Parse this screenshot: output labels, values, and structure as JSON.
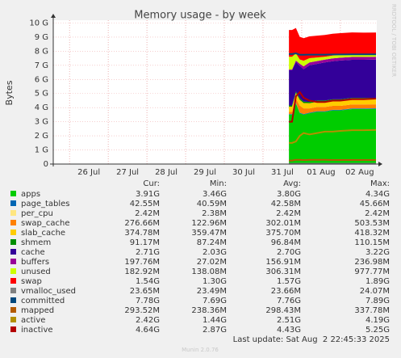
{
  "chart_data": {
    "type": "area",
    "title": "Memory usage - by week",
    "y_label": "Bytes",
    "side_text": "RRDTOOL / TOBI OETIKER",
    "footer": "Last update: Sat Aug  2 22:45:33 2025",
    "version": "Munin 2.0.76",
    "legend_columns": [
      "Cur:",
      "Min:",
      "Avg:",
      "Max:"
    ],
    "ylim": [
      0,
      10.2
    ],
    "yticks": [
      0,
      {
        "value": 1,
        "label": "1 G"
      },
      {
        "value": 2,
        "label": "2 G"
      },
      {
        "value": 3,
        "label": "3 G"
      },
      {
        "value": 4,
        "label": "4 G"
      },
      {
        "value": 5,
        "label": "5 G"
      },
      {
        "value": 6,
        "label": "6 G"
      },
      {
        "value": 7,
        "label": "7 G"
      },
      {
        "value": 8,
        "label": "8 G"
      },
      {
        "value": 9,
        "label": "9 G"
      },
      {
        "value": 10,
        "label": "10 G"
      }
    ],
    "xlim": [
      25.58,
      33.94
    ],
    "xticks": [
      {
        "value": 26.5,
        "label": "26 Jul"
      },
      {
        "value": 27.5,
        "label": "27 Jul"
      },
      {
        "value": 28.5,
        "label": "28 Jul"
      },
      {
        "value": 29.5,
        "label": "29 Jul"
      },
      {
        "value": 30.5,
        "label": "30 Jul"
      },
      {
        "value": 31.5,
        "label": "31 Jul"
      },
      {
        "value": 32.5,
        "label": "01 Aug"
      },
      {
        "value": 33.5,
        "label": "02 Aug"
      }
    ],
    "grid": true,
    "x": [
      31.67,
      31.75,
      31.85,
      31.95,
      32.05,
      32.2,
      32.4,
      32.6,
      32.8,
      33.0,
      33.3,
      33.6,
      33.92
    ],
    "series": [
      {
        "name": "apps",
        "color": "#00cc00",
        "stacked": true,
        "values": [
          3.5,
          3.5,
          4.3,
          3.6,
          3.5,
          3.6,
          3.7,
          3.7,
          3.8,
          3.8,
          3.9,
          3.9,
          3.91
        ],
        "stats": [
          "3.91G",
          "3.46G",
          "3.80G",
          "4.34G"
        ]
      },
      {
        "name": "page_tables",
        "color": "#0066b3",
        "stacked": true,
        "values": [
          0.043,
          0.043,
          0.043,
          0.043,
          0.043,
          0.043,
          0.043,
          0.043,
          0.043,
          0.043,
          0.043,
          0.043,
          0.043
        ],
        "stats": [
          "42.55M",
          "40.59M",
          "42.58M",
          "45.66M"
        ]
      },
      {
        "name": "per_cpu",
        "color": "#ffe680",
        "stacked": true,
        "values": [
          0.0024,
          0.0024,
          0.0024,
          0.0024,
          0.0024,
          0.0024,
          0.0024,
          0.0024,
          0.0024,
          0.0024,
          0.0024,
          0.0024,
          0.0024
        ],
        "stats": [
          "2.42M",
          "2.38M",
          "2.42M",
          "2.42M"
        ]
      },
      {
        "name": "swap_cache",
        "color": "#ff8000",
        "stacked": true,
        "values": [
          0.15,
          0.15,
          0.3,
          0.5,
          0.4,
          0.3,
          0.3,
          0.3,
          0.28,
          0.28,
          0.28,
          0.28,
          0.277
        ],
        "stats": [
          "276.66M",
          "122.96M",
          "302.01M",
          "503.53M"
        ]
      },
      {
        "name": "slab_cache",
        "color": "#ffcc00",
        "stacked": true,
        "values": [
          0.37,
          0.37,
          0.4,
          0.41,
          0.38,
          0.37,
          0.37,
          0.37,
          0.375,
          0.375,
          0.375,
          0.375,
          0.375
        ],
        "stats": [
          "374.78M",
          "359.47M",
          "375.70M",
          "418.32M"
        ]
      },
      {
        "name": "shmem",
        "color": "#008f00",
        "stacked": true,
        "values": [
          0.09,
          0.09,
          0.1,
          0.11,
          0.1,
          0.09,
          0.09,
          0.09,
          0.09,
          0.09,
          0.09,
          0.09,
          0.091
        ],
        "stats": [
          "91.17M",
          "87.24M",
          "96.84M",
          "110.15M"
        ]
      },
      {
        "name": "cache",
        "color": "#330099",
        "stacked": true,
        "values": [
          2.5,
          2.5,
          2.1,
          2.3,
          2.3,
          2.6,
          2.6,
          2.7,
          2.7,
          2.75,
          2.7,
          2.7,
          2.71
        ],
        "stats": [
          "2.71G",
          "2.03G",
          "2.70G",
          "3.22G"
        ]
      },
      {
        "name": "buffers",
        "color": "#990099",
        "stacked": true,
        "values": [
          0.05,
          0.05,
          0.1,
          0.15,
          0.2,
          0.2,
          0.2,
          0.2,
          0.2,
          0.2,
          0.2,
          0.2,
          0.198
        ],
        "stats": [
          "197.76M",
          "27.02M",
          "156.91M",
          "236.98M"
        ]
      },
      {
        "name": "unused",
        "color": "#ccff00",
        "stacked": true,
        "values": [
          0.9,
          0.9,
          0.5,
          0.3,
          0.4,
          0.3,
          0.25,
          0.2,
          0.2,
          0.2,
          0.2,
          0.19,
          0.183
        ],
        "stats": [
          "182.92M",
          "138.08M",
          "306.31M",
          "977.77M"
        ]
      },
      {
        "name": "swap",
        "color": "#ff0000",
        "stacked": true,
        "values": [
          1.9,
          1.9,
          1.8,
          1.6,
          1.6,
          1.55,
          1.55,
          1.55,
          1.55,
          1.54,
          1.54,
          1.54,
          1.54
        ],
        "stats": [
          "1.54G",
          "1.30G",
          "1.57G",
          "1.89G"
        ]
      },
      {
        "name": "vmalloc_used",
        "color": "#808080",
        "stacked": false,
        "values": [
          0.0236,
          0.0236,
          0.0236,
          0.0236,
          0.0236,
          0.0236,
          0.0236,
          0.0236,
          0.0236,
          0.0236,
          0.0236,
          0.0236,
          0.0236
        ],
        "stats": [
          "23.65M",
          "23.49M",
          "23.66M",
          "24.07M"
        ]
      },
      {
        "name": "committed",
        "color": "#00487d",
        "stacked": false,
        "values": [
          7.8,
          7.8,
          7.85,
          7.75,
          7.75,
          7.76,
          7.76,
          7.76,
          7.77,
          7.77,
          7.78,
          7.78,
          7.78
        ],
        "stats": [
          "7.78G",
          "7.69G",
          "7.76G",
          "7.89G"
        ]
      },
      {
        "name": "mapped",
        "color": "#b35a00",
        "stacked": false,
        "values": [
          0.25,
          0.25,
          0.3,
          0.3,
          0.28,
          0.3,
          0.3,
          0.3,
          0.29,
          0.29,
          0.29,
          0.29,
          0.29
        ],
        "stats": [
          "293.52M",
          "238.36M",
          "298.43M",
          "337.78M"
        ]
      },
      {
        "name": "active",
        "color": "#b38f00",
        "stacked": false,
        "values": [
          1.5,
          1.5,
          1.6,
          2.0,
          2.2,
          2.1,
          2.2,
          2.3,
          2.3,
          2.35,
          2.4,
          2.4,
          2.42
        ],
        "stats": [
          "2.42G",
          "1.44G",
          "2.51G",
          "4.19G"
        ]
      },
      {
        "name": "inactive",
        "color": "#b30000",
        "stacked": false,
        "values": [
          3.0,
          3.0,
          4.8,
          5.1,
          4.7,
          4.5,
          4.4,
          4.4,
          4.5,
          4.5,
          4.6,
          4.6,
          4.64
        ],
        "stats": [
          "4.64G",
          "2.87G",
          "4.43G",
          "5.25G"
        ]
      }
    ]
  }
}
